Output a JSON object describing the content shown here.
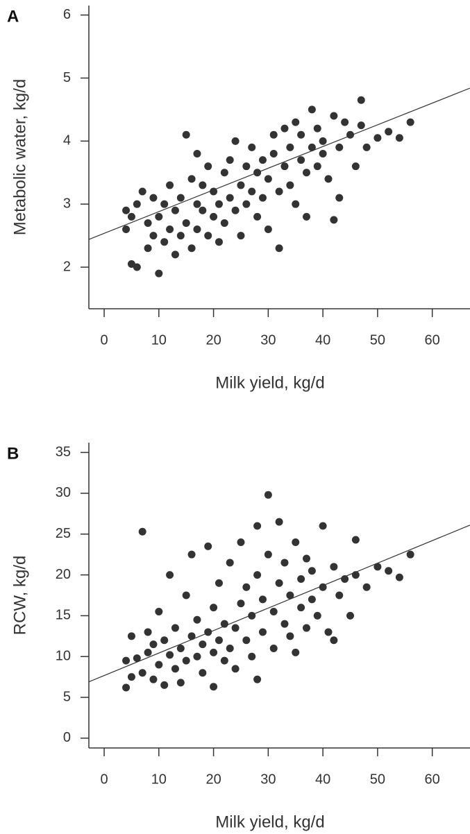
{
  "chart_data": [
    {
      "type": "scatter",
      "panel_label": "A",
      "x_label": "Milk yield, kg/d",
      "y_label": "Metabolic water, kg/d",
      "xlim": [
        -2.8,
        66.9
      ],
      "ylim": [
        1.34,
        6.15
      ],
      "xticks": [
        0,
        10,
        20,
        30,
        40,
        50,
        60
      ],
      "yticks": [
        2,
        3,
        4,
        5,
        6
      ],
      "trend": {
        "x": [
          -2.8,
          66.9
        ],
        "y": [
          2.44,
          4.84
        ],
        "color": "#333333"
      },
      "series": [
        {
          "color": "#333333",
          "x": [
            4,
            4,
            5,
            6,
            5,
            6,
            7,
            8,
            8,
            9,
            9,
            10,
            10,
            11,
            11,
            12,
            12,
            13,
            13,
            14,
            14,
            15,
            15,
            16,
            16,
            17,
            17,
            17,
            18,
            18,
            19,
            19,
            20,
            20,
            21,
            21,
            22,
            22,
            23,
            23,
            24,
            24,
            25,
            25,
            26,
            26,
            27,
            27,
            28,
            28,
            29,
            29,
            30,
            30,
            31,
            31,
            32,
            32,
            33,
            33,
            34,
            34,
            35,
            35,
            36,
            36,
            37,
            37,
            38,
            38,
            39,
            39,
            40,
            40,
            41,
            42,
            42,
            43,
            43,
            44,
            45,
            46,
            47,
            47,
            48,
            50,
            52,
            54,
            56
          ],
          "values": [
            2.9,
            2.6,
            2.05,
            2.0,
            2.8,
            3.0,
            3.2,
            2.3,
            2.7,
            3.1,
            2.5,
            1.9,
            2.8,
            3.0,
            2.4,
            2.6,
            3.3,
            2.2,
            2.9,
            3.1,
            2.5,
            4.1,
            2.7,
            3.4,
            2.3,
            3.0,
            2.6,
            3.8,
            2.9,
            3.3,
            2.5,
            3.6,
            2.8,
            3.2,
            3.0,
            2.4,
            3.5,
            2.7,
            3.1,
            3.7,
            2.9,
            4.0,
            3.3,
            2.5,
            3.6,
            3.0,
            3.2,
            3.9,
            2.8,
            3.5,
            3.7,
            3.1,
            3.4,
            2.6,
            3.8,
            4.1,
            3.2,
            2.3,
            3.6,
            4.2,
            3.9,
            3.3,
            4.3,
            3.0,
            3.7,
            4.1,
            3.5,
            2.8,
            4.5,
            3.9,
            3.6,
            4.2,
            3.8,
            4.0,
            3.4,
            4.4,
            2.75,
            3.1,
            3.9,
            4.3,
            4.1,
            3.6,
            4.65,
            4.25,
            3.9,
            4.05,
            4.15,
            4.05,
            4.3
          ]
        }
      ]
    },
    {
      "type": "scatter",
      "panel_label": "B",
      "x_label": "Milk yield, kg/d",
      "y_label": "RCW, kg/d",
      "xlim": [
        -2.8,
        66.9
      ],
      "ylim": [
        -1.2,
        36.2
      ],
      "xticks": [
        0,
        10,
        20,
        30,
        40,
        50,
        60
      ],
      "yticks": [
        0,
        5,
        10,
        15,
        20,
        25,
        30,
        35
      ],
      "trend": {
        "x": [
          -2.8,
          66.9
        ],
        "y": [
          6.9,
          26.1
        ],
        "color": "#333333"
      },
      "series": [
        {
          "color": "#333333",
          "x": [
            4,
            4,
            5,
            5,
            6,
            7,
            7,
            8,
            8,
            9,
            9,
            10,
            10,
            11,
            11,
            12,
            12,
            13,
            13,
            14,
            14,
            15,
            15,
            16,
            16,
            17,
            17,
            18,
            18,
            19,
            19,
            20,
            20,
            20,
            21,
            21,
            22,
            22,
            23,
            23,
            24,
            24,
            25,
            25,
            26,
            26,
            27,
            27,
            28,
            28,
            28,
            29,
            29,
            30,
            30,
            31,
            31,
            32,
            32,
            33,
            33,
            34,
            34,
            35,
            35,
            36,
            36,
            37,
            37,
            38,
            38,
            39,
            40,
            40,
            41,
            42,
            42,
            43,
            44,
            45,
            46,
            46,
            48,
            50,
            52,
            54,
            56
          ],
          "values": [
            9.5,
            6.2,
            7.5,
            12.5,
            9.8,
            25.3,
            8.0,
            10.5,
            13.0,
            7.2,
            11.5,
            15.5,
            9.0,
            12.0,
            6.5,
            20.0,
            10.2,
            8.5,
            13.5,
            11.0,
            6.8,
            17.5,
            9.5,
            12.5,
            22.5,
            10.0,
            14.5,
            11.5,
            8.0,
            13.0,
            23.5,
            10.5,
            16.0,
            6.3,
            12.0,
            19.0,
            9.5,
            14.0,
            11.0,
            21.5,
            13.5,
            8.5,
            16.5,
            24.0,
            12.0,
            18.5,
            15.0,
            10.0,
            7.2,
            26.0,
            20.0,
            13.0,
            17.0,
            29.8,
            22.5,
            15.5,
            11.0,
            26.5,
            19.0,
            14.0,
            21.5,
            17.5,
            12.5,
            24.0,
            10.5,
            19.5,
            16.0,
            22.0,
            13.5,
            17.0,
            20.5,
            15.0,
            26.0,
            18.5,
            13.0,
            21.0,
            12.0,
            17.5,
            19.5,
            15.0,
            24.3,
            20.0,
            18.5,
            21.0,
            20.5,
            19.7,
            22.5
          ]
        }
      ]
    }
  ]
}
